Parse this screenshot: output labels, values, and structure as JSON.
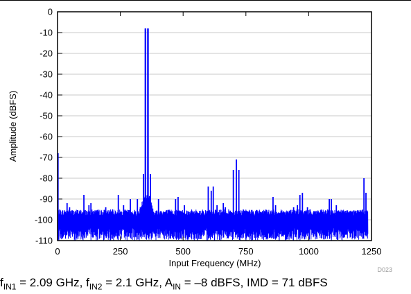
{
  "chart_data": {
    "type": "line",
    "title": "",
    "xlabel": "Input Frequency (MHz)",
    "ylabel": "Amplitude (dBFS)",
    "xlim": [
      0,
      1250
    ],
    "ylim": [
      -110,
      0
    ],
    "x_ticks": [
      0,
      250,
      500,
      750,
      1000,
      1250
    ],
    "y_ticks": [
      0,
      -10,
      -20,
      -30,
      -40,
      -50,
      -60,
      -70,
      -80,
      -90,
      -100,
      -110
    ],
    "grid": "horizontal",
    "legend": "none",
    "series_color": "#0000ff",
    "noise_floor_dbfs": -100,
    "peaks": [
      {
        "x": 2,
        "y": -68
      },
      {
        "x": 38,
        "y": -92
      },
      {
        "x": 48,
        "y": -94
      },
      {
        "x": 105,
        "y": -88
      },
      {
        "x": 125,
        "y": -93
      },
      {
        "x": 133,
        "y": -92
      },
      {
        "x": 192,
        "y": -94
      },
      {
        "x": 242,
        "y": -88
      },
      {
        "x": 263,
        "y": -93
      },
      {
        "x": 290,
        "y": -90
      },
      {
        "x": 318,
        "y": -90
      },
      {
        "x": 342,
        "y": -78
      },
      {
        "x": 350,
        "y": -8
      },
      {
        "x": 360,
        "y": -8
      },
      {
        "x": 370,
        "y": -78
      },
      {
        "x": 402,
        "y": -90
      },
      {
        "x": 470,
        "y": -90
      },
      {
        "x": 480,
        "y": -89
      },
      {
        "x": 505,
        "y": -93
      },
      {
        "x": 600,
        "y": -84
      },
      {
        "x": 612,
        "y": -86
      },
      {
        "x": 620,
        "y": -84
      },
      {
        "x": 635,
        "y": -93
      },
      {
        "x": 660,
        "y": -92
      },
      {
        "x": 668,
        "y": -94
      },
      {
        "x": 700,
        "y": -76
      },
      {
        "x": 712,
        "y": -71
      },
      {
        "x": 722,
        "y": -76
      },
      {
        "x": 858,
        "y": -89
      },
      {
        "x": 868,
        "y": -93
      },
      {
        "x": 940,
        "y": -94
      },
      {
        "x": 955,
        "y": -93
      },
      {
        "x": 965,
        "y": -88
      },
      {
        "x": 975,
        "y": -87
      },
      {
        "x": 995,
        "y": -94
      },
      {
        "x": 1082,
        "y": -90
      },
      {
        "x": 1090,
        "y": -90
      },
      {
        "x": 1110,
        "y": -93
      },
      {
        "x": 1220,
        "y": -80
      },
      {
        "x": 1228,
        "y": -87
      }
    ]
  },
  "figure_id": "D023",
  "caption": {
    "f1_sym": "f",
    "f1_sub": "IN1",
    "f1_val": " = 2.09 GHz, ",
    "f2_sym": "f",
    "f2_sub": "IN2",
    "f2_val": " = 2.1 GHz, ",
    "a_sym": "A",
    "a_sub": "IN",
    "a_val": " = –8 dBFS, IMD = 71 dBFS"
  }
}
